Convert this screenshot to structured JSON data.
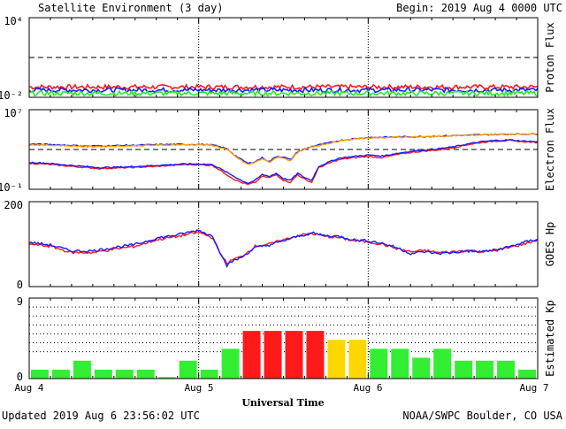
{
  "header": {
    "title": "Satellite Environment (3 day)",
    "begin": "Begin:  2019 Aug 4 0000 UTC"
  },
  "footer": {
    "updated": "Updated 2019 Aug  6 23:56:02 UTC",
    "source": "NOAA/SWPC Boulder, CO USA",
    "xlabel": "Universal Time"
  },
  "colors": {
    "red": "#ff1a1a",
    "blue": "#1a1aff",
    "green": "#22ee22",
    "orange": "#ffa500",
    "kp_green": "#33ee33",
    "kp_yellow": "#ffd700",
    "kp_red": "#ff1a1a"
  },
  "x_ticks": [
    "Aug 4",
    "Aug 5",
    "Aug 6",
    "Aug 7"
  ],
  "chart_data": [
    {
      "type": "line",
      "ylabel": "Proton Flux",
      "scale": "log",
      "ylim": [
        0.01,
        10000
      ],
      "y_ticks": [
        "10⁴",
        "10⁻²"
      ],
      "threshold": 10,
      "series": [
        {
          "color": "red",
          "x": [
            0,
            24,
            48,
            72
          ],
          "values": [
            0.06,
            0.06,
            0.06,
            0.06
          ]
        },
        {
          "color": "blue",
          "x": [
            0,
            24,
            48,
            72
          ],
          "values": [
            0.035,
            0.035,
            0.035,
            0.035
          ]
        },
        {
          "color": "green",
          "x": [
            0,
            24,
            48,
            72
          ],
          "values": [
            0.02,
            0.02,
            0.02,
            0.02
          ]
        }
      ]
    },
    {
      "type": "line",
      "ylabel": "Electron Flux",
      "scale": "log",
      "ylim": [
        0.1,
        10000000
      ],
      "y_ticks": [
        "10⁷",
        "10⁻¹"
      ],
      "threshold": 1000,
      "series": [
        {
          "color": "red",
          "x": [
            0,
            2,
            6,
            10,
            14,
            18,
            22,
            24,
            26,
            29,
            30,
            31,
            32,
            33,
            34,
            35,
            36,
            37,
            38,
            39,
            40,
            41,
            42,
            43,
            44,
            46,
            48,
            50,
            52,
            54,
            56,
            58,
            60,
            62,
            64,
            66,
            68,
            70,
            72
          ],
          "values": [
            40,
            35,
            20,
            12,
            15,
            20,
            30,
            30,
            25,
            1,
            0.5,
            0.3,
            0.5,
            2,
            1.5,
            3,
            0.8,
            0.5,
            3,
            1,
            0.5,
            15,
            30,
            60,
            100,
            150,
            200,
            150,
            300,
            500,
            700,
            900,
            1500,
            3000,
            5000,
            7000,
            8000,
            6000,
            5000
          ]
        },
        {
          "color": "blue",
          "x": [
            0,
            2,
            6,
            10,
            14,
            18,
            22,
            24,
            26,
            29,
            30,
            31,
            32,
            33,
            34,
            35,
            36,
            37,
            38,
            39,
            40,
            41,
            42,
            43,
            44,
            46,
            48,
            50,
            52,
            54,
            56,
            58,
            60,
            62,
            64,
            66,
            68,
            70,
            72
          ],
          "values": [
            50,
            45,
            25,
            15,
            18,
            25,
            35,
            35,
            30,
            2,
            0.8,
            0.4,
            0.8,
            3,
            2,
            4,
            1.2,
            0.8,
            4,
            1.5,
            0.8,
            20,
            40,
            80,
            140,
            200,
            280,
            220,
            400,
            650,
            900,
            1200,
            1800,
            3500,
            6000,
            8000,
            9000,
            7000,
            6000
          ]
        },
        {
          "color": "blue",
          "x": [
            0,
            4,
            8,
            12,
            16,
            20,
            24,
            26,
            28,
            29,
            30,
            31,
            32,
            33,
            34,
            35,
            36,
            37,
            38,
            40,
            42,
            44,
            46,
            48,
            52,
            56,
            60,
            64,
            68,
            72
          ],
          "values": [
            3500,
            3000,
            2200,
            2400,
            2800,
            3200,
            3300,
            2800,
            1200,
            300,
            100,
            40,
            60,
            150,
            60,
            200,
            180,
            90,
            600,
            2000,
            4000,
            8000,
            12000,
            16000,
            18000,
            20000,
            25000,
            30000,
            35000,
            36000
          ]
        },
        {
          "color": "orange",
          "x": [
            0,
            4,
            8,
            12,
            16,
            20,
            24,
            26,
            28,
            29,
            30,
            31,
            32,
            33,
            34,
            35,
            36,
            37,
            38,
            40,
            42,
            44,
            46,
            48,
            52,
            56,
            60,
            64,
            68,
            72
          ],
          "values": [
            3000,
            2600,
            1900,
            2100,
            2500,
            2900,
            3000,
            2600,
            1000,
            250,
            80,
            30,
            50,
            120,
            50,
            160,
            150,
            70,
            500,
            1800,
            3600,
            7000,
            11000,
            15000,
            17000,
            19000,
            24000,
            29000,
            34000,
            35000
          ]
        }
      ]
    },
    {
      "type": "line",
      "ylabel": "GOES Hp",
      "ylim": [
        0,
        200
      ],
      "y_ticks": [
        "200",
        "0"
      ],
      "series": [
        {
          "color": "red",
          "x": [
            0,
            3,
            6,
            9,
            12,
            15,
            18,
            21,
            24,
            26,
            27,
            28,
            29,
            30,
            32,
            34,
            36,
            38,
            40,
            42,
            44,
            46,
            48,
            50,
            52,
            54,
            56,
            58,
            60,
            62,
            64,
            66,
            68,
            70,
            72
          ],
          "values": [
            100,
            95,
            80,
            80,
            88,
            95,
            110,
            118,
            128,
            115,
            80,
            55,
            65,
            70,
            95,
            100,
            110,
            120,
            125,
            118,
            115,
            108,
            105,
            100,
            90,
            82,
            85,
            80,
            82,
            85,
            82,
            85,
            92,
            100,
            110
          ]
        },
        {
          "color": "blue",
          "x": [
            0,
            3,
            6,
            9,
            12,
            15,
            18,
            21,
            24,
            26,
            27,
            28,
            29,
            30,
            32,
            34,
            36,
            38,
            40,
            42,
            44,
            46,
            48,
            50,
            52,
            54,
            56,
            58,
            60,
            62,
            64,
            66,
            68,
            70,
            72
          ],
          "values": [
            104,
            98,
            84,
            84,
            92,
            99,
            114,
            122,
            133,
            118,
            82,
            50,
            62,
            68,
            92,
            98,
            108,
            118,
            126,
            120,
            118,
            110,
            108,
            102,
            92,
            78,
            82,
            78,
            80,
            84,
            82,
            86,
            94,
            104,
            112
          ]
        }
      ]
    },
    {
      "type": "bar",
      "ylabel": "Estimated Kp",
      "ylim": [
        0,
        9
      ],
      "y_ticks": [
        "9",
        "0"
      ],
      "x": [
        1.5,
        4.5,
        7.5,
        10.5,
        13.5,
        16.5,
        19.5,
        22.5,
        25.5,
        28.5,
        31.5,
        34.5,
        37.5,
        40.5,
        43.5,
        46.5,
        49.5,
        52.5,
        55.5,
        58.5,
        61.5,
        64.5,
        67.5,
        70.5
      ],
      "values": [
        1,
        1,
        2,
        1,
        1,
        1,
        0.17,
        2,
        1,
        3.33,
        5.33,
        5.33,
        5.33,
        5.33,
        4.33,
        4.33,
        3.33,
        3.33,
        2.33,
        3.33,
        2,
        2,
        2,
        1
      ],
      "bar_colors": [
        "green",
        "green",
        "green",
        "green",
        "green",
        "green",
        "green",
        "green",
        "green",
        "green",
        "red",
        "red",
        "red",
        "red",
        "yellow",
        "yellow",
        "green",
        "green",
        "green",
        "green",
        "green",
        "green",
        "green",
        "green"
      ]
    }
  ]
}
